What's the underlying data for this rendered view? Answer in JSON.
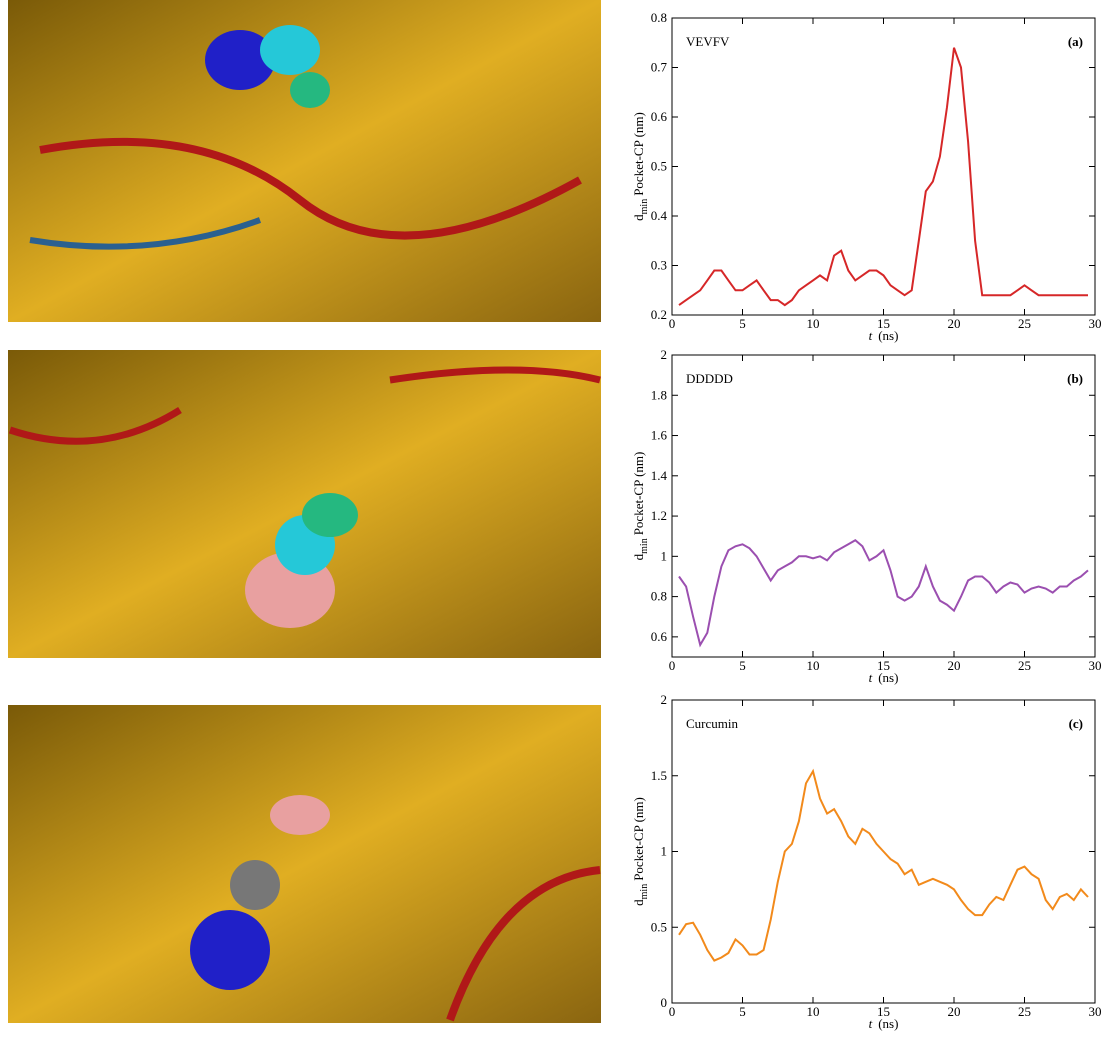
{
  "chart_data": [
    {
      "type": "line",
      "annotation": "VEVFV",
      "panel": "(a)",
      "ylabel": [
        "d",
        "min",
        "Pocket-CP (nm)"
      ],
      "xlabel": [
        "t",
        "(ns)"
      ],
      "xlim": [
        0,
        30
      ],
      "xticks": [
        0,
        5,
        10,
        15,
        20,
        25,
        30
      ],
      "ylim": [
        0.2,
        0.8
      ],
      "yticks": [
        0.2,
        0.3,
        0.4,
        0.5,
        0.6,
        0.7,
        0.8
      ],
      "x": [
        0.5,
        1,
        1.5,
        2,
        2.5,
        3,
        3.5,
        4,
        4.5,
        5,
        5.5,
        6,
        6.5,
        7,
        7.5,
        8,
        8.5,
        9,
        9.5,
        10,
        10.5,
        11,
        11.5,
        12,
        12.5,
        13,
        13.5,
        14,
        14.5,
        15,
        15.5,
        16,
        16.5,
        17,
        17.5,
        18,
        18.5,
        19,
        19.5,
        20,
        20.5,
        21,
        21.5,
        22,
        22.5,
        23,
        23.5,
        24,
        24.5,
        25,
        25.5,
        26,
        26.5,
        27,
        27.5,
        28,
        28.5,
        29,
        29.5
      ],
      "series": [
        {
          "color": "#d62728",
          "values": [
            0.22,
            0.23,
            0.24,
            0.25,
            0.27,
            0.29,
            0.29,
            0.27,
            0.25,
            0.25,
            0.26,
            0.27,
            0.25,
            0.23,
            0.23,
            0.22,
            0.23,
            0.25,
            0.26,
            0.27,
            0.28,
            0.27,
            0.32,
            0.33,
            0.29,
            0.27,
            0.28,
            0.29,
            0.29,
            0.28,
            0.26,
            0.25,
            0.24,
            0.25,
            0.35,
            0.45,
            0.47,
            0.52,
            0.62,
            0.74,
            0.7,
            0.55,
            0.35,
            0.24,
            0.24,
            0.24,
            0.24,
            0.24,
            0.25,
            0.26,
            0.25,
            0.24,
            0.24,
            0.24,
            0.24,
            0.24,
            0.24,
            0.24,
            0.24
          ]
        }
      ]
    },
    {
      "type": "line",
      "annotation": "DDDDD",
      "panel": "(b)",
      "ylabel": [
        "d",
        "min",
        "Pocket-CP (nm)"
      ],
      "xlabel": [
        "t",
        "(ns)"
      ],
      "xlim": [
        0,
        30
      ],
      "xticks": [
        0,
        5,
        10,
        15,
        20,
        25,
        30
      ],
      "ylim": [
        0.5,
        2
      ],
      "yticks": [
        0.6,
        0.8,
        1,
        1.2,
        1.4,
        1.6,
        1.8,
        2
      ],
      "x": [
        0.5,
        1,
        1.5,
        2,
        2.5,
        3,
        3.5,
        4,
        4.5,
        5,
        5.5,
        6,
        6.5,
        7,
        7.5,
        8,
        8.5,
        9,
        9.5,
        10,
        10.5,
        11,
        11.5,
        12,
        12.5,
        13,
        13.5,
        14,
        14.5,
        15,
        15.5,
        16,
        16.5,
        17,
        17.5,
        18,
        18.5,
        19,
        19.5,
        20,
        20.5,
        21,
        21.5,
        22,
        22.5,
        23,
        23.5,
        24,
        24.5,
        25,
        25.5,
        26,
        26.5,
        27,
        27.5,
        28,
        28.5,
        29,
        29.5
      ],
      "series": [
        {
          "color": "#9b4fb0",
          "values": [
            0.9,
            0.85,
            0.7,
            0.56,
            0.62,
            0.8,
            0.95,
            1.03,
            1.05,
            1.06,
            1.04,
            1.0,
            0.94,
            0.88,
            0.93,
            0.95,
            0.97,
            1.0,
            1.0,
            0.99,
            1.0,
            0.98,
            1.02,
            1.04,
            1.06,
            1.08,
            1.05,
            0.98,
            1.0,
            1.03,
            0.93,
            0.8,
            0.78,
            0.8,
            0.85,
            0.95,
            0.85,
            0.78,
            0.76,
            0.73,
            0.8,
            0.88,
            0.9,
            0.9,
            0.87,
            0.82,
            0.85,
            0.87,
            0.86,
            0.82,
            0.84,
            0.85,
            0.84,
            0.82,
            0.85,
            0.85,
            0.88,
            0.9,
            0.93
          ]
        }
      ]
    },
    {
      "type": "line",
      "annotation": "Curcumin",
      "panel": "(c)",
      "ylabel": [
        "d",
        "min",
        "Pocket-CP (nm)"
      ],
      "xlabel": [
        "t",
        "(ns)"
      ],
      "xlim": [
        0,
        30
      ],
      "xticks": [
        0,
        5,
        10,
        15,
        20,
        25,
        30
      ],
      "ylim": [
        0,
        2
      ],
      "yticks": [
        0,
        0.5,
        1,
        1.5,
        2
      ],
      "x": [
        0.5,
        1,
        1.5,
        2,
        2.5,
        3,
        3.5,
        4,
        4.5,
        5,
        5.5,
        6,
        6.5,
        7,
        7.5,
        8,
        8.5,
        9,
        9.5,
        10,
        10.5,
        11,
        11.5,
        12,
        12.5,
        13,
        13.5,
        14,
        14.5,
        15,
        15.5,
        16,
        16.5,
        17,
        17.5,
        18,
        18.5,
        19,
        19.5,
        20,
        20.5,
        21,
        21.5,
        22,
        22.5,
        23,
        23.5,
        24,
        24.5,
        25,
        25.5,
        26,
        26.5,
        27,
        27.5,
        28,
        28.5,
        29,
        29.5
      ],
      "series": [
        {
          "color": "#f28a1b",
          "values": [
            0.45,
            0.52,
            0.53,
            0.45,
            0.35,
            0.28,
            0.3,
            0.33,
            0.42,
            0.38,
            0.32,
            0.32,
            0.35,
            0.55,
            0.8,
            1.0,
            1.05,
            1.2,
            1.45,
            1.53,
            1.35,
            1.25,
            1.28,
            1.2,
            1.1,
            1.05,
            1.15,
            1.12,
            1.05,
            1.0,
            0.95,
            0.92,
            0.85,
            0.88,
            0.78,
            0.8,
            0.82,
            0.8,
            0.78,
            0.75,
            0.68,
            0.62,
            0.58,
            0.58,
            0.65,
            0.7,
            0.68,
            0.78,
            0.88,
            0.9,
            0.85,
            0.82,
            0.68,
            0.62,
            0.7,
            0.72,
            0.68,
            0.75,
            0.7
          ]
        }
      ]
    }
  ]
}
